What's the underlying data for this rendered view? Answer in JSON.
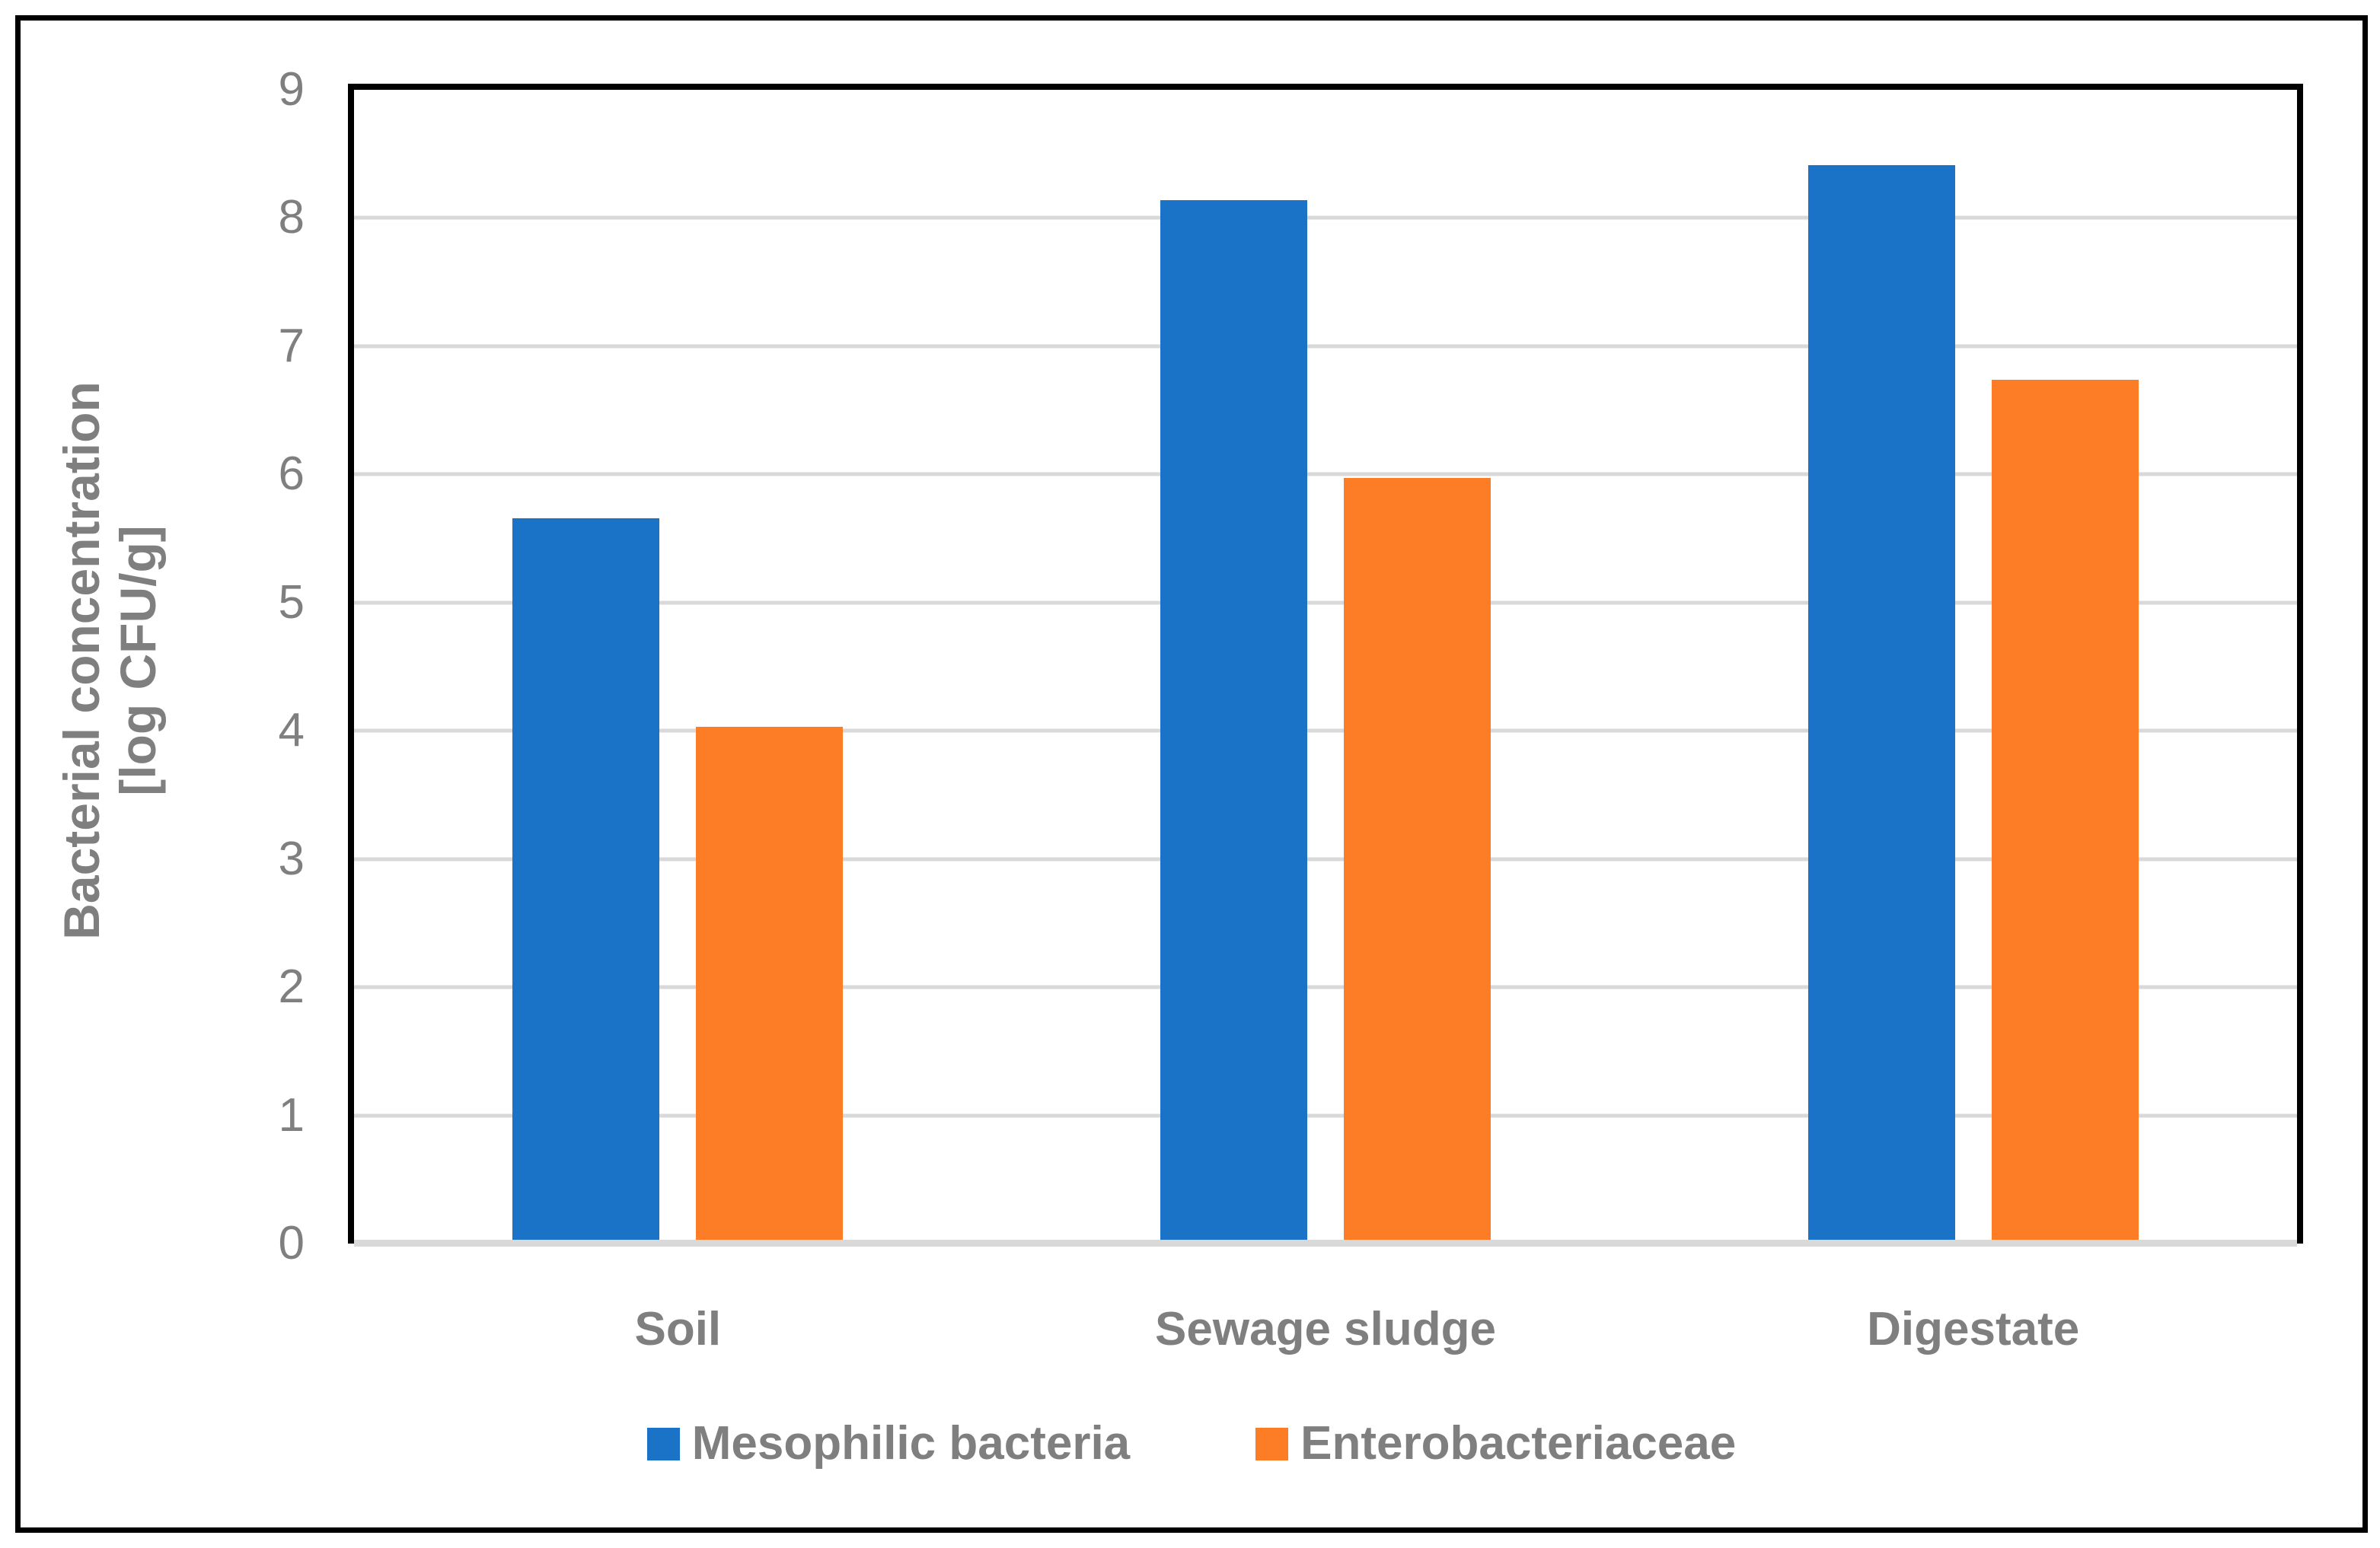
{
  "figure": {
    "background": "#FFFFFF",
    "border_color": "#000000"
  },
  "chart_data": {
    "type": "bar",
    "title": "",
    "categories": [
      "Soil",
      "Sewage sludge",
      "Digestate"
    ],
    "series": [
      {
        "name": "Mesophilic bacteria",
        "color": "#1B73C8",
        "values": [
          5.66,
          8.14,
          8.41
        ]
      },
      {
        "name": "Enterobacteriaceae",
        "color": "#FD7D26",
        "values": [
          4.03,
          5.97,
          6.74
        ]
      }
    ],
    "ylabel_line1": "Bacterial concentration",
    "ylabel_line2": "[log CFU/g]",
    "xlabel": "",
    "ylim": [
      0,
      9
    ],
    "yticks": [
      0,
      1,
      2,
      3,
      4,
      5,
      6,
      7,
      8,
      9
    ],
    "grid": "horizontal",
    "gridline_color": "#D9D9D9",
    "axis_line_color": "#000000",
    "baseline_color": "#D9D9D9",
    "axis_text_color": "#7F7F7F",
    "legend_position": "bottom"
  }
}
